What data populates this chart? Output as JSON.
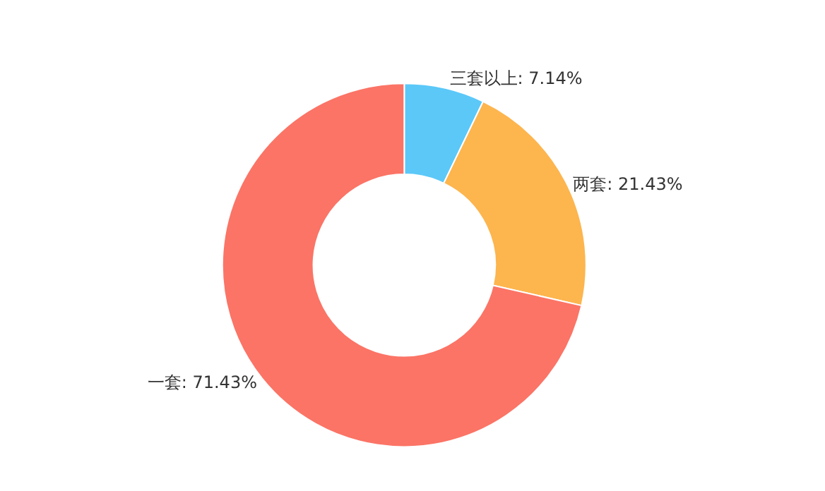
{
  "chart_data": {
    "type": "donut",
    "categories": [
      "三套以上",
      "两套",
      "一套"
    ],
    "values": [
      7.14,
      21.43,
      71.43
    ],
    "value_labels": [
      "7.14%",
      "21.43%",
      "71.43%"
    ],
    "colors": [
      "#5bc8f8",
      "#fdb54e",
      "#fb7466"
    ],
    "legend": false
  }
}
